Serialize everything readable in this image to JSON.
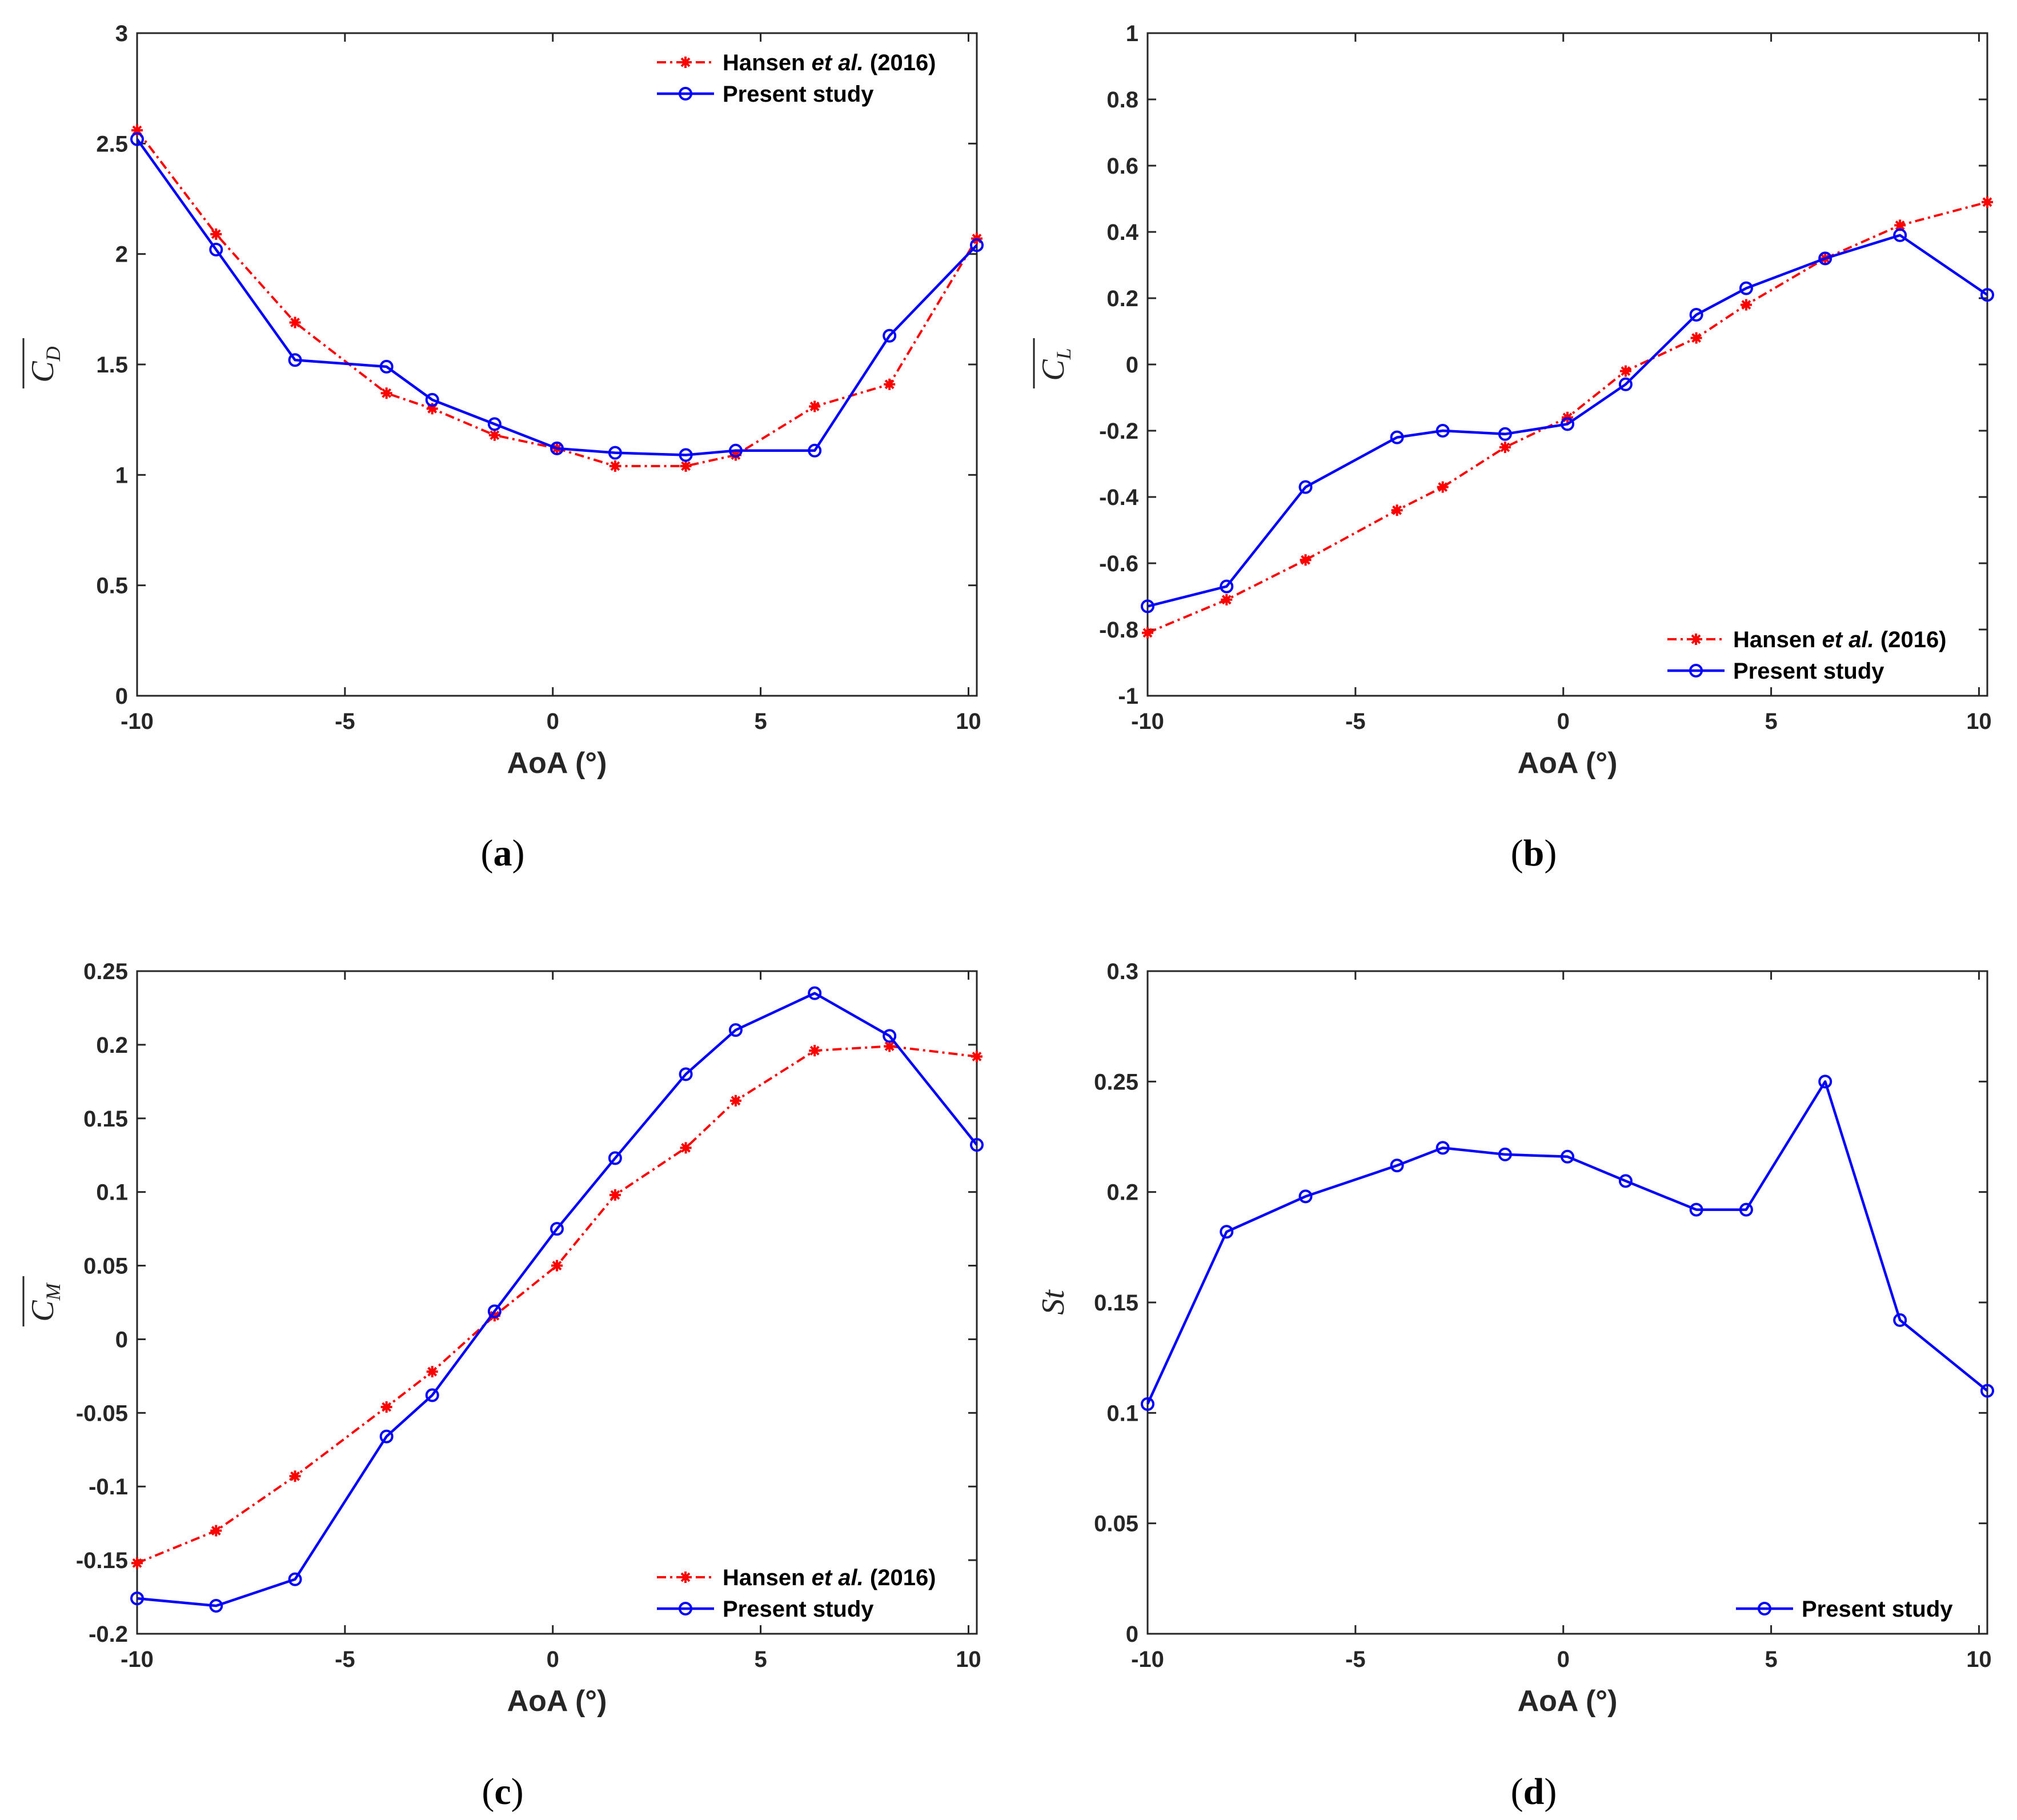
{
  "colors": {
    "reference": "#ff0000",
    "present": "#0000ff",
    "axis": "#262626"
  },
  "chart_data": [
    {
      "id": "a",
      "type": "line",
      "caption": "a",
      "xlabel": "AoA (°)",
      "ylabel": {
        "base": "C",
        "sub": "D"
      },
      "xlim": [
        -10,
        10.2
      ],
      "ylim": [
        0,
        3
      ],
      "xticks": [
        -10,
        -5,
        0,
        5,
        10
      ],
      "yticks": [
        0,
        0.5,
        1,
        1.5,
        2,
        2.5,
        3
      ],
      "ytick_labels": [
        "0",
        "0.5",
        "1",
        "1.5",
        "2",
        "2.5",
        "3"
      ],
      "legend": {
        "position": "top-right",
        "entries": [
          {
            "series": 0,
            "parts": [
              "Hansen ",
              "et al.",
              " (2016)"
            ]
          },
          {
            "series": 1,
            "parts": [
              "Present study"
            ]
          }
        ]
      },
      "series": [
        {
          "name": "Hansen et al. (2016)",
          "style": "reference",
          "x": [
            -10,
            -8.1,
            -6.2,
            -4,
            -2.9,
            -1.4,
            0.1,
            1.5,
            3.2,
            4.4,
            6.3,
            8.1,
            10.2
          ],
          "y": [
            2.56,
            2.09,
            1.69,
            1.37,
            1.3,
            1.18,
            1.12,
            1.04,
            1.04,
            1.09,
            1.31,
            1.41,
            2.07
          ]
        },
        {
          "name": "Present study",
          "style": "present",
          "x": [
            -10,
            -8.1,
            -6.2,
            -4,
            -2.9,
            -1.4,
            0.1,
            1.5,
            3.2,
            4.4,
            6.3,
            8.1,
            10.2
          ],
          "y": [
            2.52,
            2.02,
            1.52,
            1.49,
            1.34,
            1.23,
            1.12,
            1.1,
            1.09,
            1.11,
            1.11,
            1.63,
            2.04
          ]
        }
      ]
    },
    {
      "id": "b",
      "type": "line",
      "caption": "b",
      "xlabel": "AoA (°)",
      "ylabel": {
        "base": "C",
        "sub": "L"
      },
      "xlim": [
        -10,
        10.2
      ],
      "ylim": [
        -1,
        1
      ],
      "xticks": [
        -10,
        -5,
        0,
        5,
        10
      ],
      "yticks": [
        -1,
        -0.8,
        -0.6,
        -0.4,
        -0.2,
        0,
        0.2,
        0.4,
        0.6,
        0.8,
        1
      ],
      "ytick_labels": [
        "-1",
        "-0.8",
        "-0.6",
        "-0.4",
        "-0.2",
        "0",
        "0.2",
        "0.4",
        "0.6",
        "0.8",
        "1"
      ],
      "legend": {
        "position": "bottom-right",
        "entries": [
          {
            "series": 0,
            "parts": [
              "Hansen ",
              "et al.",
              " (2016)"
            ]
          },
          {
            "series": 1,
            "parts": [
              "Present study"
            ]
          }
        ]
      },
      "series": [
        {
          "name": "Hansen et al. (2016)",
          "style": "reference",
          "x": [
            -10,
            -8.1,
            -6.2,
            -4,
            -2.9,
            -1.4,
            0.1,
            1.5,
            3.2,
            4.4,
            6.3,
            8.1,
            10.2
          ],
          "y": [
            -0.81,
            -0.71,
            -0.59,
            -0.44,
            -0.37,
            -0.25,
            -0.16,
            -0.02,
            0.08,
            0.18,
            0.32,
            0.42,
            0.49
          ]
        },
        {
          "name": "Present study",
          "style": "present",
          "x": [
            -10,
            -8.1,
            -6.2,
            -4,
            -2.9,
            -1.4,
            0.1,
            1.5,
            3.2,
            4.4,
            6.3,
            8.1,
            10.2
          ],
          "y": [
            -0.73,
            -0.67,
            -0.37,
            -0.22,
            -0.2,
            -0.21,
            -0.18,
            -0.06,
            0.15,
            0.23,
            0.32,
            0.39,
            0.21
          ]
        }
      ]
    },
    {
      "id": "c",
      "type": "line",
      "caption": "c",
      "xlabel": "AoA (°)",
      "ylabel": {
        "base": "C",
        "sub": "M"
      },
      "xlim": [
        -10,
        10.2
      ],
      "ylim": [
        -0.2,
        0.25
      ],
      "xticks": [
        -10,
        -5,
        0,
        5,
        10
      ],
      "yticks": [
        -0.2,
        -0.15,
        -0.1,
        -0.05,
        0,
        0.05,
        0.1,
        0.15,
        0.2,
        0.25
      ],
      "ytick_labels": [
        "-0.2",
        "-0.15",
        "-0.1",
        "-0.05",
        "0",
        "0.05",
        "0.1",
        "0.15",
        "0.2",
        "0.25"
      ],
      "legend": {
        "position": "bottom-right",
        "entries": [
          {
            "series": 0,
            "parts": [
              "Hansen ",
              "et al.",
              " (2016)"
            ]
          },
          {
            "series": 1,
            "parts": [
              "Present study"
            ]
          }
        ]
      },
      "series": [
        {
          "name": "Hansen et al. (2016)",
          "style": "reference",
          "x": [
            -10,
            -8.1,
            -6.2,
            -4,
            -2.9,
            -1.4,
            0.1,
            1.5,
            3.2,
            4.4,
            6.3,
            8.1,
            10.2
          ],
          "y": [
            -0.152,
            -0.13,
            -0.093,
            -0.046,
            -0.022,
            0.016,
            0.05,
            0.098,
            0.13,
            0.162,
            0.196,
            0.199,
            0.192
          ]
        },
        {
          "name": "Present study",
          "style": "present",
          "x": [
            -10,
            -8.1,
            -6.2,
            -4,
            -2.9,
            -1.4,
            0.1,
            1.5,
            3.2,
            4.4,
            6.3,
            8.1,
            10.2
          ],
          "y": [
            -0.176,
            -0.181,
            -0.163,
            -0.066,
            -0.038,
            0.019,
            0.075,
            0.123,
            0.18,
            0.21,
            0.235,
            0.206,
            0.132
          ]
        }
      ]
    },
    {
      "id": "d",
      "type": "line",
      "caption": "d",
      "xlabel": "AoA (°)",
      "ylabel": {
        "base": "St",
        "sub": ""
      },
      "xlim": [
        -10,
        10.2
      ],
      "ylim": [
        0,
        0.3
      ],
      "xticks": [
        -10,
        -5,
        0,
        5,
        10
      ],
      "yticks": [
        0,
        0.05,
        0.1,
        0.15,
        0.2,
        0.25,
        0.3
      ],
      "ytick_labels": [
        "0",
        "0.05",
        "0.1",
        "0.15",
        "0.2",
        "0.25",
        "0.3"
      ],
      "legend": {
        "position": "bottom-right",
        "entries": [
          {
            "series": 0,
            "parts": [
              "Present study"
            ]
          }
        ]
      },
      "series": [
        {
          "name": "Present study",
          "style": "present",
          "x": [
            -10,
            -8.1,
            -6.2,
            -4,
            -2.9,
            -1.4,
            0.1,
            1.5,
            3.2,
            4.4,
            6.3,
            8.1,
            10.2
          ],
          "y": [
            0.104,
            0.182,
            0.198,
            0.212,
            0.22,
            0.217,
            0.216,
            0.205,
            0.192,
            0.192,
            0.25,
            0.142,
            0.11
          ]
        }
      ]
    }
  ]
}
